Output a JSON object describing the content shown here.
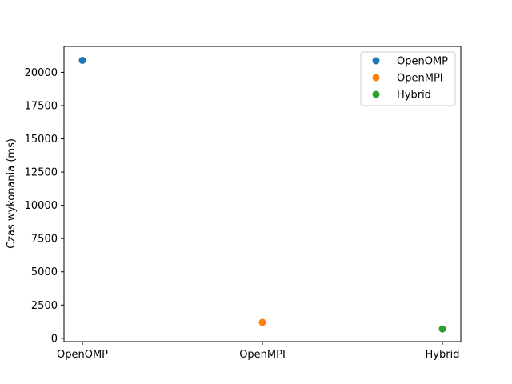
{
  "chart_data": {
    "type": "scatter",
    "title": "",
    "xlabel": "",
    "ylabel": "Czas wykonania (ms)",
    "categories": [
      "OpenOMP",
      "OpenMPI",
      "Hybrid"
    ],
    "series": [
      {
        "name": "OpenOMP",
        "x": "OpenOMP",
        "y": 20900,
        "color": "#1f77b4"
      },
      {
        "name": "OpenMPI",
        "x": "OpenMPI",
        "y": 1200,
        "color": "#ff7f0e"
      },
      {
        "name": "Hybrid",
        "x": "Hybrid",
        "y": 700,
        "color": "#2ca02c"
      }
    ],
    "yticks": [
      0,
      2500,
      5000,
      7500,
      10000,
      12500,
      15000,
      17500,
      20000
    ],
    "ylim": [
      -250,
      21950
    ],
    "grid": false,
    "legend_position": "top-right"
  }
}
